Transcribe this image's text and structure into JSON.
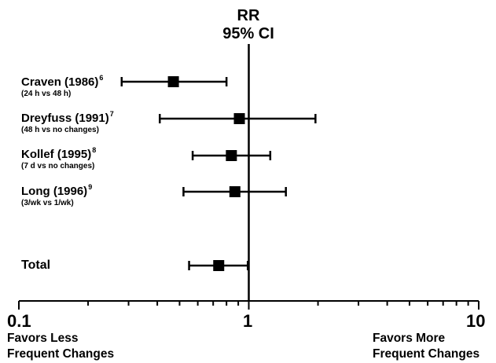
{
  "header": {
    "line1": "RR",
    "line2": "95% CI"
  },
  "chart_data": {
    "type": "forest",
    "x_scale": "log",
    "xlim": [
      0.1,
      10
    ],
    "reference_line": 1,
    "x_ticks": [
      {
        "value": 0.1,
        "label": "0.1"
      },
      {
        "value": 1,
        "label": "1"
      },
      {
        "value": 10,
        "label": "10"
      }
    ],
    "rows": [
      {
        "study": "Craven (1986)",
        "ref": "6",
        "comparison": "(24 h vs 48 h)",
        "rr": 0.47,
        "ci_low": 0.28,
        "ci_high": 0.8
      },
      {
        "study": "Dreyfuss (1991)",
        "ref": "7",
        "comparison": "(48 h vs no changes)",
        "rr": 0.91,
        "ci_low": 0.41,
        "ci_high": 1.95
      },
      {
        "study": "Kollef (1995)",
        "ref": "8",
        "comparison": "(7 d vs no changes)",
        "rr": 0.84,
        "ci_low": 0.57,
        "ci_high": 1.24
      },
      {
        "study": "Long (1996)",
        "ref": "9",
        "comparison": "(3/wk vs 1/wk)",
        "rr": 0.87,
        "ci_low": 0.52,
        "ci_high": 1.45
      },
      {
        "study": "Total",
        "ref": "",
        "comparison": "",
        "rr": 0.74,
        "ci_low": 0.55,
        "ci_high": 0.99
      }
    ],
    "favors_left": [
      "Favors Less",
      "Frequent Changes"
    ],
    "favors_right": [
      "Favors More",
      "Frequent Changes"
    ],
    "grid": false,
    "legend": "none"
  }
}
